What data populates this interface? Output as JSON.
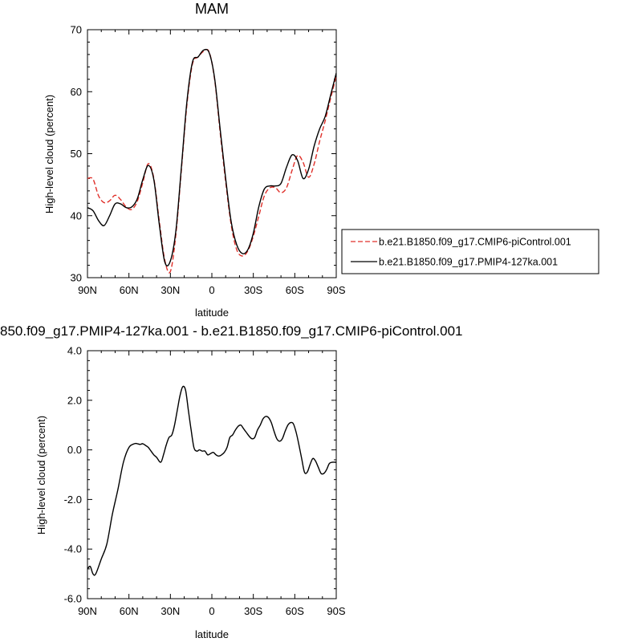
{
  "chart_data": [
    {
      "type": "line",
      "title": "MAM",
      "xlabel": "latitude",
      "ylabel": "High-level cloud (percent)",
      "xlim": [
        90,
        -90
      ],
      "ylim": [
        30,
        70
      ],
      "xticks": [
        {
          "value": 90,
          "label": "90N"
        },
        {
          "value": 60,
          "label": "60N"
        },
        {
          "value": 30,
          "label": "30N"
        },
        {
          "value": 0,
          "label": "0"
        },
        {
          "value": -30,
          "label": "30S"
        },
        {
          "value": -60,
          "label": "60S"
        },
        {
          "value": -90,
          "label": "90S"
        }
      ],
      "yticks": [
        {
          "value": 30,
          "label": "30"
        },
        {
          "value": 40,
          "label": "40"
        },
        {
          "value": 50,
          "label": "50"
        },
        {
          "value": 60,
          "label": "60"
        },
        {
          "value": 70,
          "label": "70"
        }
      ],
      "legend_position": "right",
      "series": [
        {
          "name": "b.e21.B1850.f09_g17.CMIP6-piControl.001",
          "color": "#e0302a",
          "dash": "dashed",
          "x": [
            90,
            86,
            82,
            78,
            74,
            70,
            66,
            62,
            58,
            54,
            50,
            46,
            42,
            38,
            34,
            30,
            26,
            22,
            18,
            14,
            10,
            6,
            2,
            -2,
            -6,
            -10,
            -14,
            -18,
            -22,
            -26,
            -30,
            -34,
            -38,
            -42,
            -46,
            -50,
            -54,
            -58,
            -62,
            -66,
            -70,
            -74,
            -78,
            -82,
            -86,
            -90
          ],
          "y": [
            46,
            45.9,
            43.2,
            42.1,
            42.4,
            43.3,
            42.6,
            41.4,
            41.0,
            42.3,
            45.3,
            48.4,
            46.0,
            39.0,
            32.8,
            31.0,
            37.0,
            47.5,
            58.0,
            64.5,
            65.6,
            66.5,
            66.4,
            62.0,
            53.5,
            45.5,
            38.5,
            34.5,
            33.5,
            34.3,
            36.7,
            40.0,
            43.2,
            44.5,
            44.5,
            43.7,
            44.5,
            47.3,
            49.7,
            48.6,
            46.2,
            48.3,
            52.0,
            55.3,
            59.0,
            62.5
          ]
        },
        {
          "name": "b.e21.B1850.f09_g17.PMIP4-127ka.001",
          "color": "#000000",
          "dash": "solid",
          "x": [
            90,
            86,
            82,
            78,
            74,
            70,
            66,
            62,
            58,
            54,
            50,
            46,
            42,
            38,
            34,
            30,
            26,
            22,
            18,
            14,
            10,
            6,
            2,
            -2,
            -6,
            -10,
            -14,
            -18,
            -22,
            -26,
            -30,
            -34,
            -38,
            -42,
            -46,
            -50,
            -54,
            -58,
            -62,
            -66,
            -70,
            -74,
            -78,
            -82,
            -86,
            -90
          ],
          "y": [
            41.3,
            40.8,
            39.2,
            38.4,
            40.0,
            41.9,
            41.9,
            41.3,
            41.4,
            42.7,
            45.8,
            48.1,
            45.8,
            38.5,
            32.5,
            32.7,
            37.6,
            47.9,
            58.5,
            64.8,
            65.6,
            66.7,
            66.3,
            62.2,
            54.0,
            46.0,
            39.0,
            35.3,
            33.9,
            34.5,
            37.2,
            41.5,
            44.3,
            44.8,
            44.8,
            45.2,
            47.8,
            49.8,
            48.9,
            46.0,
            47.5,
            51.2,
            54.0,
            56.0,
            59.5,
            63.0
          ]
        }
      ]
    },
    {
      "type": "line",
      "title": "850.f09_g17.PMIP4-127ka.001 - b.e21.B1850.f09_g17.CMIP6-piControl.001",
      "xlabel": "latitude",
      "ylabel": "High-level cloud (percent)",
      "xlim": [
        90,
        -90
      ],
      "ylim": [
        -6.0,
        4.0
      ],
      "xticks": [
        {
          "value": 90,
          "label": "90N"
        },
        {
          "value": 60,
          "label": "60N"
        },
        {
          "value": 30,
          "label": "30N"
        },
        {
          "value": 0,
          "label": "0"
        },
        {
          "value": -30,
          "label": "30S"
        },
        {
          "value": -60,
          "label": "60S"
        },
        {
          "value": -90,
          "label": "90S"
        }
      ],
      "yticks": [
        {
          "value": -6.0,
          "label": "-6.0"
        },
        {
          "value": -4.0,
          "label": "-4.0"
        },
        {
          "value": -2.0,
          "label": "-2.0"
        },
        {
          "value": 0.0,
          "label": "0.0"
        },
        {
          "value": 2.0,
          "label": "2.0"
        },
        {
          "value": 4.0,
          "label": "4.0"
        }
      ],
      "series": [
        {
          "color": "#000000",
          "dash": "solid",
          "x": [
            90,
            88,
            86,
            84,
            80,
            76,
            72,
            68,
            64,
            60,
            56,
            54,
            52,
            50,
            48,
            46,
            44,
            42,
            40,
            37,
            35,
            33,
            31,
            29,
            27,
            25,
            23,
            21,
            19,
            17,
            15,
            13,
            11,
            9,
            7,
            5,
            3,
            1,
            -1,
            -3,
            -5,
            -7,
            -9,
            -11,
            -13,
            -15,
            -17,
            -19,
            -21,
            -23,
            -25,
            -27,
            -29,
            -31,
            -33,
            -35,
            -37,
            -39,
            -41,
            -43,
            -45,
            -47,
            -49,
            -51,
            -53,
            -55,
            -57,
            -59,
            -61,
            -63,
            -65,
            -67,
            -69,
            -71,
            -73,
            -75,
            -77,
            -79,
            -81,
            -83,
            -85,
            -87,
            -89,
            -90
          ],
          "y": [
            -4.8,
            -4.7,
            -5.0,
            -5.0,
            -4.4,
            -3.8,
            -2.6,
            -1.6,
            -0.5,
            0.1,
            0.25,
            0.25,
            0.22,
            0.25,
            0.18,
            0.1,
            -0.05,
            -0.2,
            -0.3,
            -0.5,
            -0.2,
            0.2,
            0.5,
            0.6,
            1.0,
            1.6,
            2.2,
            2.55,
            2.4,
            1.6,
            0.8,
            0.1,
            -0.05,
            0.0,
            -0.05,
            -0.05,
            -0.2,
            -0.15,
            -0.1,
            -0.2,
            -0.25,
            -0.2,
            -0.1,
            0.1,
            0.5,
            0.6,
            0.8,
            0.95,
            1.0,
            0.85,
            0.7,
            0.55,
            0.45,
            0.5,
            0.8,
            1.0,
            1.25,
            1.35,
            1.3,
            1.1,
            0.75,
            0.45,
            0.35,
            0.45,
            0.75,
            1.0,
            1.1,
            1.05,
            0.7,
            0.2,
            -0.35,
            -0.9,
            -0.9,
            -0.6,
            -0.35,
            -0.45,
            -0.7,
            -0.95,
            -0.95,
            -0.8,
            -0.55,
            -0.5,
            -0.5,
            -0.5
          ]
        }
      ]
    }
  ]
}
